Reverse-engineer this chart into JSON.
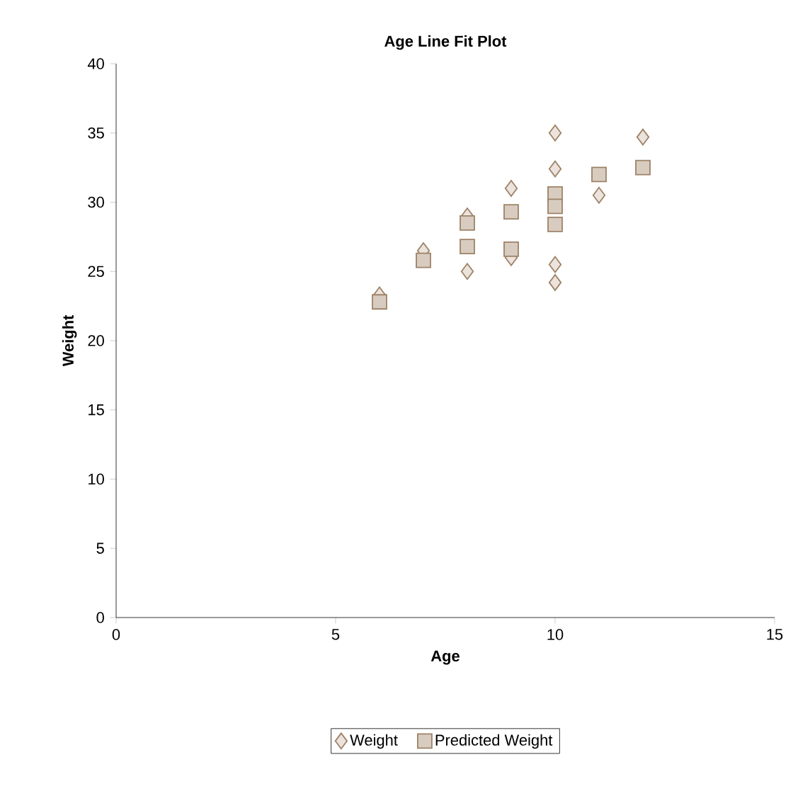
{
  "chart_data": {
    "type": "scatter",
    "title": "Age Line Fit Plot",
    "xlabel": "Age",
    "ylabel": "Weight",
    "xlim": [
      0,
      15
    ],
    "xticks": [
      0,
      5,
      10,
      15
    ],
    "ylim": [
      0,
      40
    ],
    "yticks": [
      0,
      5,
      10,
      15,
      20,
      25,
      30,
      35,
      40
    ],
    "grid": false,
    "legend": "bottom",
    "series": [
      {
        "name": "Weight",
        "color": "#ece3dc",
        "marker": "diamond",
        "x": [
          6,
          7,
          8,
          8,
          9,
          9,
          10,
          10,
          10,
          10,
          11,
          12
        ],
        "values": [
          23.3,
          26.5,
          29,
          25,
          31,
          26,
          35,
          32.4,
          25.5,
          24.2,
          30.5,
          34.7
        ]
      },
      {
        "name": "Predicted Weight",
        "color": "#d8ccc0",
        "marker": "square",
        "x": [
          6,
          7,
          8,
          8,
          9,
          9,
          10,
          10,
          10,
          11,
          12
        ],
        "values": [
          22.8,
          25.8,
          28.5,
          26.8,
          29.3,
          26.6,
          30.6,
          29.7,
          28.4,
          32,
          32.5
        ]
      }
    ]
  }
}
